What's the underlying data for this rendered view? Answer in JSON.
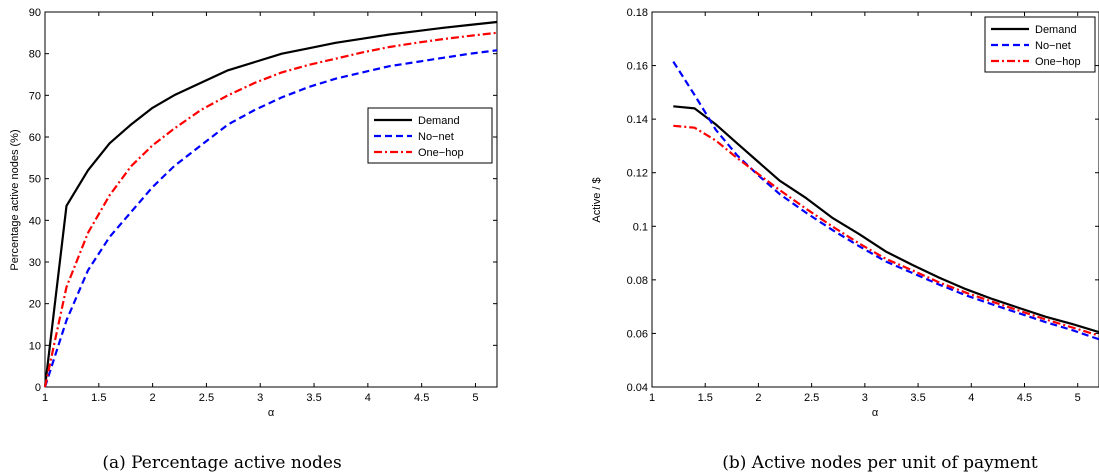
{
  "chart_data": [
    {
      "type": "line",
      "ylabel": "Percentage active nodes (%)",
      "xlabel": "α",
      "caption": "(a) Percentage active nodes",
      "xlim": [
        1,
        5.2
      ],
      "ylim": [
        0,
        90
      ],
      "xticks": [
        "1",
        "1.5",
        "2",
        "2.5",
        "3",
        "3.5",
        "4",
        "4.5",
        "5"
      ],
      "yticks": [
        "0",
        "10",
        "20",
        "30",
        "40",
        "50",
        "60",
        "70",
        "80",
        "90"
      ],
      "legend_position": "right-middle",
      "series": [
        {
          "name": "Demand",
          "color": "#000000",
          "style": "solid",
          "x": [
            1,
            1.2,
            1.4,
            1.6,
            1.8,
            2.0,
            2.2,
            2.45,
            2.7,
            2.95,
            3.2,
            3.45,
            3.7,
            3.95,
            4.2,
            4.45,
            4.7,
            4.95,
            5.2
          ],
          "y": [
            0,
            43.5,
            52,
            58.5,
            63,
            67,
            70,
            73,
            76,
            78,
            80,
            81.3,
            82.6,
            83.6,
            84.6,
            85.4,
            86.2,
            86.9,
            87.6
          ]
        },
        {
          "name": "No−net",
          "color": "#0000ff",
          "style": "dashed",
          "x": [
            1,
            1.2,
            1.4,
            1.6,
            1.8,
            2.0,
            2.2,
            2.45,
            2.7,
            2.95,
            3.2,
            3.45,
            3.7,
            3.95,
            4.2,
            4.45,
            4.7,
            4.95,
            5.2
          ],
          "y": [
            0,
            16,
            28,
            36,
            42,
            48,
            53,
            58,
            63,
            66.5,
            69.5,
            72,
            74,
            75.5,
            77,
            78,
            79,
            80,
            80.8
          ]
        },
        {
          "name": "One−hop",
          "color": "#ff0000",
          "style": "dashdot",
          "x": [
            1,
            1.2,
            1.4,
            1.6,
            1.8,
            2.0,
            2.2,
            2.45,
            2.7,
            2.95,
            3.2,
            3.45,
            3.7,
            3.95,
            4.2,
            4.45,
            4.7,
            4.95,
            5.2
          ],
          "y": [
            0,
            24,
            37,
            46,
            53,
            58,
            62,
            66.5,
            70,
            73,
            75.5,
            77.3,
            78.8,
            80.3,
            81.6,
            82.6,
            83.5,
            84.3,
            85
          ]
        }
      ]
    },
    {
      "type": "line",
      "ylabel": "Active / $",
      "xlabel": "α",
      "caption": "(b) Active nodes per unit of payment",
      "xlim": [
        1,
        5.2
      ],
      "ylim": [
        0.04,
        0.18
      ],
      "xticks": [
        "1",
        "1.5",
        "2",
        "2.5",
        "3",
        "3.5",
        "4",
        "4.5",
        "5"
      ],
      "yticks": [
        "0.04",
        "0.06",
        "0.08",
        "0.1",
        "0.12",
        "0.14",
        "0.16",
        "0.18"
      ],
      "legend_position": "top-right",
      "series": [
        {
          "name": "Demand",
          "color": "#000000",
          "style": "solid",
          "x": [
            1.2,
            1.4,
            1.6,
            1.8,
            2.0,
            2.2,
            2.45,
            2.7,
            2.95,
            3.2,
            3.45,
            3.7,
            3.95,
            4.2,
            4.45,
            4.7,
            4.95,
            5.2
          ],
          "y": [
            0.1448,
            0.144,
            0.138,
            0.131,
            0.124,
            0.117,
            0.1105,
            0.103,
            0.097,
            0.0905,
            0.0855,
            0.0808,
            0.0765,
            0.0728,
            0.0695,
            0.0662,
            0.0635,
            0.0605
          ]
        },
        {
          "name": "No−net",
          "color": "#0000ff",
          "style": "dashed",
          "x": [
            1.2,
            1.4,
            1.6,
            1.8,
            2.0,
            2.2,
            2.45,
            2.7,
            2.95,
            3.2,
            3.45,
            3.7,
            3.95,
            4.2,
            4.45,
            4.7,
            4.95,
            5.2
          ],
          "y": [
            0.1615,
            0.149,
            0.136,
            0.1265,
            0.119,
            0.112,
            0.105,
            0.0985,
            0.0925,
            0.0868,
            0.0825,
            0.0782,
            0.0742,
            0.0708,
            0.0675,
            0.0642,
            0.0612,
            0.0578
          ]
        },
        {
          "name": "One−hop",
          "color": "#ff0000",
          "style": "dashdot",
          "x": [
            1.2,
            1.4,
            1.6,
            1.8,
            2.0,
            2.2,
            2.45,
            2.7,
            2.95,
            3.2,
            3.45,
            3.7,
            3.95,
            4.2,
            4.45,
            4.7,
            4.95,
            5.2
          ],
          "y": [
            0.1375,
            0.1368,
            0.132,
            0.1255,
            0.1195,
            0.1135,
            0.1065,
            0.0998,
            0.0935,
            0.0878,
            0.0835,
            0.079,
            0.0752,
            0.0718,
            0.0685,
            0.0652,
            0.0622,
            0.0592
          ]
        }
      ]
    }
  ]
}
